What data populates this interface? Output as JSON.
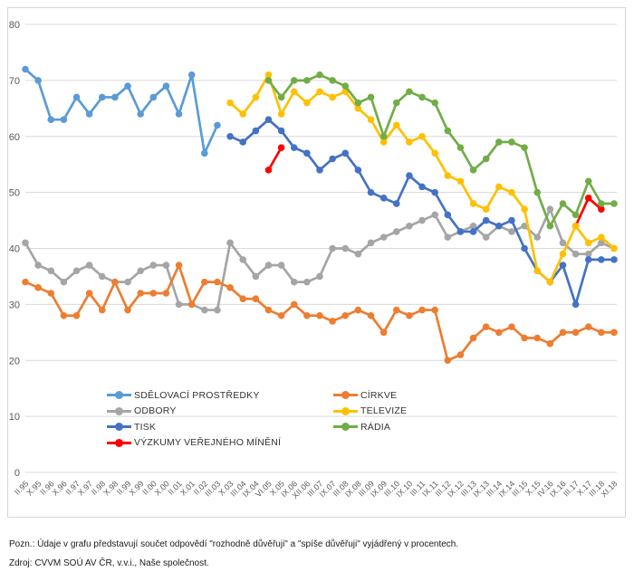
{
  "chart_data": {
    "type": "line",
    "title": "",
    "xlabel": "",
    "ylabel": "",
    "ylim": [
      0,
      80
    ],
    "yticks": [
      0,
      10,
      20,
      30,
      40,
      50,
      60,
      70,
      80
    ],
    "grid": "horizontal",
    "legend_position": "inside-bottom-left",
    "marker": "circle",
    "categories": [
      "II.95",
      "X.95",
      "II.96",
      "X.96",
      "II.97",
      "X.97",
      "II.98",
      "X.98",
      "II.99",
      "X.99",
      "II.00",
      "X.00",
      "II.01",
      "X.01",
      "II.02",
      "III.03",
      "X.03",
      "III.04",
      "IX.04",
      "VI.05",
      "X.05",
      "IX.06",
      "XII.06",
      "III.07",
      "IX.07",
      "III.08",
      "IX.08",
      "III.09",
      "IX.09",
      "III.10",
      "IX.10",
      "III.11",
      "IX.11",
      "III.12",
      "IX.12",
      "III.13",
      "IX.13",
      "III.14",
      "IX.14",
      "III.15",
      "X.15",
      "IV.16",
      "IX.16",
      "III.17",
      "X.17",
      "III.18",
      "XI.18"
    ],
    "series": [
      {
        "name": "SDĚLOVACÍ PROSTŘEDKY",
        "color": "#5B9BD5",
        "legend_column": 1,
        "values": [
          72,
          70,
          63,
          63,
          67,
          64,
          67,
          67,
          69,
          64,
          67,
          69,
          64,
          71,
          57,
          62,
          null,
          null,
          null,
          null,
          null,
          null,
          null,
          null,
          null,
          null,
          null,
          null,
          null,
          null,
          null,
          null,
          null,
          null,
          null,
          null,
          null,
          null,
          null,
          null,
          null,
          null,
          null,
          null,
          null,
          null,
          null
        ]
      },
      {
        "name": "ODBORY",
        "color": "#A5A5A5",
        "legend_column": 1,
        "values": [
          41,
          37,
          36,
          34,
          36,
          37,
          35,
          34,
          34,
          36,
          37,
          37,
          30,
          30,
          29,
          29,
          41,
          38,
          35,
          37,
          37,
          34,
          34,
          35,
          40,
          40,
          39,
          41,
          42,
          43,
          44,
          45,
          46,
          42,
          43,
          44,
          42,
          44,
          43,
          44,
          42,
          47,
          41,
          39,
          39,
          41,
          40
        ]
      },
      {
        "name": "TISK",
        "color": "#4472C4",
        "legend_column": 1,
        "values": [
          null,
          null,
          null,
          null,
          null,
          null,
          null,
          null,
          null,
          null,
          null,
          null,
          null,
          null,
          null,
          null,
          60,
          59,
          61,
          63,
          61,
          58,
          57,
          54,
          56,
          57,
          54,
          50,
          49,
          48,
          53,
          51,
          50,
          46,
          43,
          43,
          45,
          44,
          45,
          40,
          36,
          34,
          37,
          30,
          38,
          38,
          38
        ]
      },
      {
        "name": "VÝZKUMY VEŘEJNÉHO MÍNĚNÍ",
        "color": "#FF0000",
        "legend_column": 1,
        "values": [
          null,
          null,
          null,
          null,
          null,
          null,
          null,
          null,
          null,
          null,
          null,
          null,
          null,
          null,
          null,
          null,
          null,
          null,
          null,
          54,
          58,
          null,
          null,
          null,
          null,
          null,
          null,
          null,
          null,
          null,
          null,
          null,
          null,
          null,
          null,
          null,
          null,
          null,
          null,
          null,
          null,
          null,
          null,
          44,
          49,
          47,
          null
        ]
      },
      {
        "name": "CÍRKVE",
        "color": "#ED7D31",
        "legend_column": 2,
        "values": [
          34,
          33,
          32,
          28,
          28,
          32,
          29,
          34,
          29,
          32,
          32,
          32,
          37,
          30,
          34,
          34,
          33,
          31,
          31,
          29,
          28,
          30,
          28,
          28,
          27,
          28,
          29,
          28,
          25,
          29,
          28,
          29,
          29,
          20,
          21,
          24,
          26,
          25,
          26,
          24,
          24,
          23,
          25,
          25,
          26,
          25,
          25
        ]
      },
      {
        "name": "TELEVIZE",
        "color": "#FFC000",
        "legend_column": 2,
        "values": [
          null,
          null,
          null,
          null,
          null,
          null,
          null,
          null,
          null,
          null,
          null,
          null,
          null,
          null,
          null,
          null,
          66,
          64,
          67,
          71,
          64,
          68,
          66,
          68,
          67,
          68,
          65,
          63,
          59,
          62,
          59,
          60,
          57,
          53,
          52,
          48,
          47,
          51,
          50,
          47,
          36,
          34,
          39,
          44,
          41,
          42,
          40
        ]
      },
      {
        "name": "RÁDIA",
        "color": "#70AD47",
        "legend_column": 2,
        "values": [
          null,
          null,
          null,
          null,
          null,
          null,
          null,
          null,
          null,
          null,
          null,
          null,
          null,
          null,
          null,
          null,
          null,
          null,
          null,
          70,
          67,
          70,
          70,
          71,
          70,
          69,
          66,
          67,
          60,
          66,
          68,
          67,
          66,
          61,
          58,
          54,
          56,
          59,
          59,
          58,
          50,
          44,
          48,
          46,
          52,
          48,
          48
        ]
      }
    ]
  },
  "footer": {
    "note": "Pozn.: Údaje v grafu představují součet odpovědí \"rozhodně důvěřuji\" a \"spíše důvěřuji\" vyjádřený v procentech.",
    "source": "Zdroj: CVVM SOÚ AV ČR, v.v.i., Naše společnost."
  },
  "style": {
    "gridline_color": "#d9d9d9",
    "axis_label_color": "#595959",
    "legend_text_color": "#333333",
    "frame_border_color": "#d6d6d6"
  }
}
